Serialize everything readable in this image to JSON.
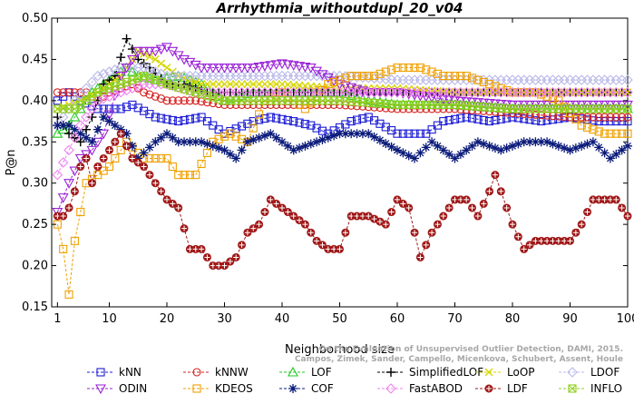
{
  "chart_data": {
    "type": "line",
    "title": "Arrhythmia_withoutdupl_20_v04",
    "xlabel": "Neighborhood size",
    "ylabel": "P@n",
    "xlim": [
      0,
      100
    ],
    "ylim": [
      0.15,
      0.5
    ],
    "x_ticks": [
      1,
      10,
      20,
      30,
      40,
      50,
      60,
      70,
      80,
      90,
      100
    ],
    "y_ticks": [
      0.15,
      0.2,
      0.25,
      0.3,
      0.35,
      0.4,
      0.45,
      0.5
    ],
    "x_tick_labels": [
      "1",
      "10",
      "20",
      "30",
      "40",
      "50",
      "60",
      "70",
      "80",
      "90",
      "100"
    ],
    "y_tick_labels": [
      "0.15",
      "0.20",
      "0.25",
      "0.30",
      "0.35",
      "0.40",
      "0.45",
      "0.50"
    ],
    "grid": false,
    "legend_position": "bottom",
    "watermark": "Campos, Zimek, Sander, Campello, Micenkova, Schubert, Assent, Houle: On the Evaluation of Unsupervised Outlier Detection, DAMI, 2015.",
    "series": [
      {
        "name": "kNN",
        "color": "#1c1cd6",
        "marker": "square",
        "anchors": [
          [
            1,
            0.4
          ],
          [
            3,
            0.41
          ],
          [
            5,
            0.4
          ],
          [
            8,
            0.39
          ],
          [
            12,
            0.39
          ],
          [
            14,
            0.395
          ],
          [
            18,
            0.38
          ],
          [
            22,
            0.375
          ],
          [
            26,
            0.38
          ],
          [
            30,
            0.36
          ],
          [
            35,
            0.375
          ],
          [
            38,
            0.38
          ],
          [
            42,
            0.375
          ],
          [
            45,
            0.37
          ],
          [
            48,
            0.36
          ],
          [
            52,
            0.375
          ],
          [
            55,
            0.38
          ],
          [
            60,
            0.36
          ],
          [
            65,
            0.36
          ],
          [
            68,
            0.375
          ],
          [
            72,
            0.38
          ],
          [
            76,
            0.375
          ],
          [
            80,
            0.38
          ],
          [
            85,
            0.375
          ],
          [
            90,
            0.38
          ],
          [
            95,
            0.375
          ],
          [
            100,
            0.375
          ]
        ]
      },
      {
        "name": "kNNW",
        "color": "#d62020",
        "marker": "circle",
        "anchors": [
          [
            1,
            0.41
          ],
          [
            4,
            0.41
          ],
          [
            6,
            0.41
          ],
          [
            8,
            0.4
          ],
          [
            10,
            0.41
          ],
          [
            14,
            0.42
          ],
          [
            16,
            0.41
          ],
          [
            20,
            0.4
          ],
          [
            25,
            0.4
          ],
          [
            30,
            0.395
          ],
          [
            40,
            0.395
          ],
          [
            50,
            0.395
          ],
          [
            60,
            0.39
          ],
          [
            70,
            0.39
          ],
          [
            80,
            0.385
          ],
          [
            90,
            0.38
          ],
          [
            100,
            0.38
          ]
        ]
      },
      {
        "name": "LOF",
        "color": "#20c820",
        "marker": "triangle",
        "anchors": [
          [
            1,
            0.36
          ],
          [
            3,
            0.37
          ],
          [
            5,
            0.39
          ],
          [
            7,
            0.41
          ],
          [
            9,
            0.42
          ],
          [
            11,
            0.43
          ],
          [
            13,
            0.44
          ],
          [
            15,
            0.43
          ],
          [
            18,
            0.425
          ],
          [
            22,
            0.43
          ],
          [
            26,
            0.42
          ],
          [
            30,
            0.4
          ],
          [
            35,
            0.41
          ],
          [
            40,
            0.41
          ],
          [
            45,
            0.41
          ],
          [
            50,
            0.41
          ],
          [
            55,
            0.4
          ],
          [
            60,
            0.395
          ],
          [
            70,
            0.395
          ],
          [
            80,
            0.39
          ],
          [
            90,
            0.39
          ],
          [
            100,
            0.39
          ]
        ]
      },
      {
        "name": "SimplifiedLOF",
        "color": "#000000",
        "marker": "plus",
        "anchors": [
          [
            1,
            0.38
          ],
          [
            3,
            0.36
          ],
          [
            5,
            0.35
          ],
          [
            7,
            0.38
          ],
          [
            9,
            0.42
          ],
          [
            11,
            0.43
          ],
          [
            13,
            0.475
          ],
          [
            15,
            0.45
          ],
          [
            17,
            0.44
          ],
          [
            20,
            0.42
          ],
          [
            23,
            0.42
          ],
          [
            27,
            0.41
          ],
          [
            30,
            0.41
          ],
          [
            35,
            0.41
          ],
          [
            40,
            0.41
          ],
          [
            45,
            0.41
          ],
          [
            50,
            0.41
          ],
          [
            60,
            0.41
          ],
          [
            70,
            0.41
          ],
          [
            80,
            0.41
          ],
          [
            90,
            0.41
          ],
          [
            100,
            0.41
          ]
        ]
      },
      {
        "name": "LoOP",
        "color": "#d6d600",
        "marker": "x",
        "anchors": [
          [
            1,
            0.39
          ],
          [
            5,
            0.4
          ],
          [
            8,
            0.41
          ],
          [
            12,
            0.43
          ],
          [
            15,
            0.46
          ],
          [
            18,
            0.45
          ],
          [
            22,
            0.43
          ],
          [
            26,
            0.42
          ],
          [
            30,
            0.42
          ],
          [
            35,
            0.42
          ],
          [
            40,
            0.42
          ],
          [
            50,
            0.415
          ],
          [
            60,
            0.415
          ],
          [
            70,
            0.41
          ],
          [
            80,
            0.41
          ],
          [
            90,
            0.41
          ],
          [
            100,
            0.41
          ]
        ]
      },
      {
        "name": "LDOF",
        "color": "#b8b8e8",
        "marker": "diamond",
        "anchors": [
          [
            1,
            0.37
          ],
          [
            4,
            0.4
          ],
          [
            8,
            0.43
          ],
          [
            12,
            0.44
          ],
          [
            16,
            0.44
          ],
          [
            20,
            0.43
          ],
          [
            25,
            0.43
          ],
          [
            30,
            0.43
          ],
          [
            40,
            0.43
          ],
          [
            50,
            0.43
          ],
          [
            60,
            0.425
          ],
          [
            70,
            0.425
          ],
          [
            80,
            0.425
          ],
          [
            90,
            0.425
          ],
          [
            100,
            0.425
          ]
        ]
      },
      {
        "name": "ODIN",
        "color": "#9a20d6",
        "marker": "triangle-down",
        "anchors": [
          [
            1,
            0.265
          ],
          [
            3,
            0.3
          ],
          [
            5,
            0.33
          ],
          [
            7,
            0.34
          ],
          [
            9,
            0.36
          ],
          [
            12,
            0.43
          ],
          [
            15,
            0.46
          ],
          [
            18,
            0.46
          ],
          [
            20,
            0.465
          ],
          [
            23,
            0.45
          ],
          [
            26,
            0.44
          ],
          [
            30,
            0.44
          ],
          [
            35,
            0.44
          ],
          [
            40,
            0.445
          ],
          [
            45,
            0.44
          ],
          [
            50,
            0.42
          ],
          [
            55,
            0.41
          ],
          [
            60,
            0.41
          ],
          [
            70,
            0.4
          ],
          [
            80,
            0.395
          ],
          [
            90,
            0.395
          ],
          [
            100,
            0.395
          ]
        ]
      },
      {
        "name": "KDEOS",
        "color": "#f0a000",
        "marker": "square",
        "anchors": [
          [
            1,
            0.25
          ],
          [
            2,
            0.22
          ],
          [
            3,
            0.165
          ],
          [
            4,
            0.23
          ],
          [
            6,
            0.3
          ],
          [
            8,
            0.31
          ],
          [
            10,
            0.32
          ],
          [
            13,
            0.35
          ],
          [
            16,
            0.33
          ],
          [
            20,
            0.33
          ],
          [
            22,
            0.31
          ],
          [
            25,
            0.31
          ],
          [
            28,
            0.35
          ],
          [
            31,
            0.36
          ],
          [
            34,
            0.35
          ],
          [
            37,
            0.4
          ],
          [
            40,
            0.41
          ],
          [
            44,
            0.39
          ],
          [
            48,
            0.42
          ],
          [
            52,
            0.43
          ],
          [
            56,
            0.43
          ],
          [
            60,
            0.44
          ],
          [
            64,
            0.44
          ],
          [
            68,
            0.43
          ],
          [
            72,
            0.43
          ],
          [
            76,
            0.42
          ],
          [
            80,
            0.41
          ],
          [
            84,
            0.41
          ],
          [
            88,
            0.4
          ],
          [
            92,
            0.37
          ],
          [
            96,
            0.36
          ],
          [
            100,
            0.36
          ]
        ]
      },
      {
        "name": "COF",
        "color": "#0a1a7a",
        "marker": "star",
        "anchors": [
          [
            1,
            0.37
          ],
          [
            3,
            0.37
          ],
          [
            5,
            0.36
          ],
          [
            7,
            0.35
          ],
          [
            9,
            0.38
          ],
          [
            11,
            0.37
          ],
          [
            13,
            0.36
          ],
          [
            15,
            0.33
          ],
          [
            18,
            0.35
          ],
          [
            20,
            0.36
          ],
          [
            22,
            0.35
          ],
          [
            26,
            0.35
          ],
          [
            30,
            0.34
          ],
          [
            32,
            0.33
          ],
          [
            34,
            0.35
          ],
          [
            38,
            0.36
          ],
          [
            42,
            0.34
          ],
          [
            46,
            0.35
          ],
          [
            50,
            0.36
          ],
          [
            55,
            0.36
          ],
          [
            60,
            0.34
          ],
          [
            63,
            0.33
          ],
          [
            66,
            0.35
          ],
          [
            70,
            0.33
          ],
          [
            74,
            0.35
          ],
          [
            78,
            0.34
          ],
          [
            82,
            0.35
          ],
          [
            86,
            0.35
          ],
          [
            90,
            0.34
          ],
          [
            94,
            0.35
          ],
          [
            97,
            0.33
          ],
          [
            100,
            0.345
          ]
        ]
      },
      {
        "name": "FastABOD",
        "color": "#f080f0",
        "marker": "diamond",
        "anchors": [
          [
            1,
            0.31
          ],
          [
            3,
            0.34
          ],
          [
            5,
            0.37
          ],
          [
            8,
            0.4
          ],
          [
            12,
            0.41
          ],
          [
            16,
            0.42
          ],
          [
            20,
            0.42
          ],
          [
            25,
            0.41
          ],
          [
            30,
            0.41
          ],
          [
            40,
            0.41
          ],
          [
            50,
            0.41
          ],
          [
            60,
            0.41
          ],
          [
            70,
            0.41
          ],
          [
            80,
            0.41
          ],
          [
            90,
            0.41
          ],
          [
            100,
            0.41
          ]
        ]
      },
      {
        "name": "LDF",
        "color": "#a01818",
        "marker": "circle-plus",
        "anchors": [
          [
            1,
            0.26
          ],
          [
            2,
            0.26
          ],
          [
            3,
            0.27
          ],
          [
            4,
            0.29
          ],
          [
            5,
            0.32
          ],
          [
            6,
            0.33
          ],
          [
            7,
            0.3
          ],
          [
            8,
            0.32
          ],
          [
            10,
            0.34
          ],
          [
            12,
            0.36
          ],
          [
            14,
            0.33
          ],
          [
            16,
            0.32
          ],
          [
            18,
            0.3
          ],
          [
            20,
            0.28
          ],
          [
            22,
            0.27
          ],
          [
            24,
            0.22
          ],
          [
            26,
            0.22
          ],
          [
            28,
            0.2
          ],
          [
            30,
            0.2
          ],
          [
            32,
            0.21
          ],
          [
            34,
            0.24
          ],
          [
            36,
            0.25
          ],
          [
            38,
            0.28
          ],
          [
            40,
            0.27
          ],
          [
            42,
            0.26
          ],
          [
            44,
            0.25
          ],
          [
            46,
            0.23
          ],
          [
            48,
            0.22
          ],
          [
            50,
            0.22
          ],
          [
            52,
            0.26
          ],
          [
            55,
            0.26
          ],
          [
            58,
            0.25
          ],
          [
            60,
            0.28
          ],
          [
            62,
            0.27
          ],
          [
            64,
            0.21
          ],
          [
            66,
            0.24
          ],
          [
            68,
            0.26
          ],
          [
            70,
            0.28
          ],
          [
            72,
            0.28
          ],
          [
            74,
            0.26
          ],
          [
            76,
            0.29
          ],
          [
            77,
            0.31
          ],
          [
            78,
            0.29
          ],
          [
            80,
            0.25
          ],
          [
            82,
            0.22
          ],
          [
            84,
            0.23
          ],
          [
            86,
            0.23
          ],
          [
            90,
            0.23
          ],
          [
            92,
            0.25
          ],
          [
            94,
            0.28
          ],
          [
            98,
            0.28
          ],
          [
            100,
            0.26
          ]
        ]
      },
      {
        "name": "INFLO",
        "color": "#90d020",
        "marker": "hourglass",
        "anchors": [
          [
            1,
            0.39
          ],
          [
            4,
            0.39
          ],
          [
            8,
            0.41
          ],
          [
            12,
            0.42
          ],
          [
            16,
            0.43
          ],
          [
            20,
            0.42
          ],
          [
            25,
            0.41
          ],
          [
            30,
            0.4
          ],
          [
            40,
            0.4
          ],
          [
            50,
            0.4
          ],
          [
            60,
            0.395
          ],
          [
            70,
            0.395
          ],
          [
            80,
            0.39
          ],
          [
            90,
            0.39
          ],
          [
            100,
            0.39
          ]
        ]
      }
    ]
  }
}
